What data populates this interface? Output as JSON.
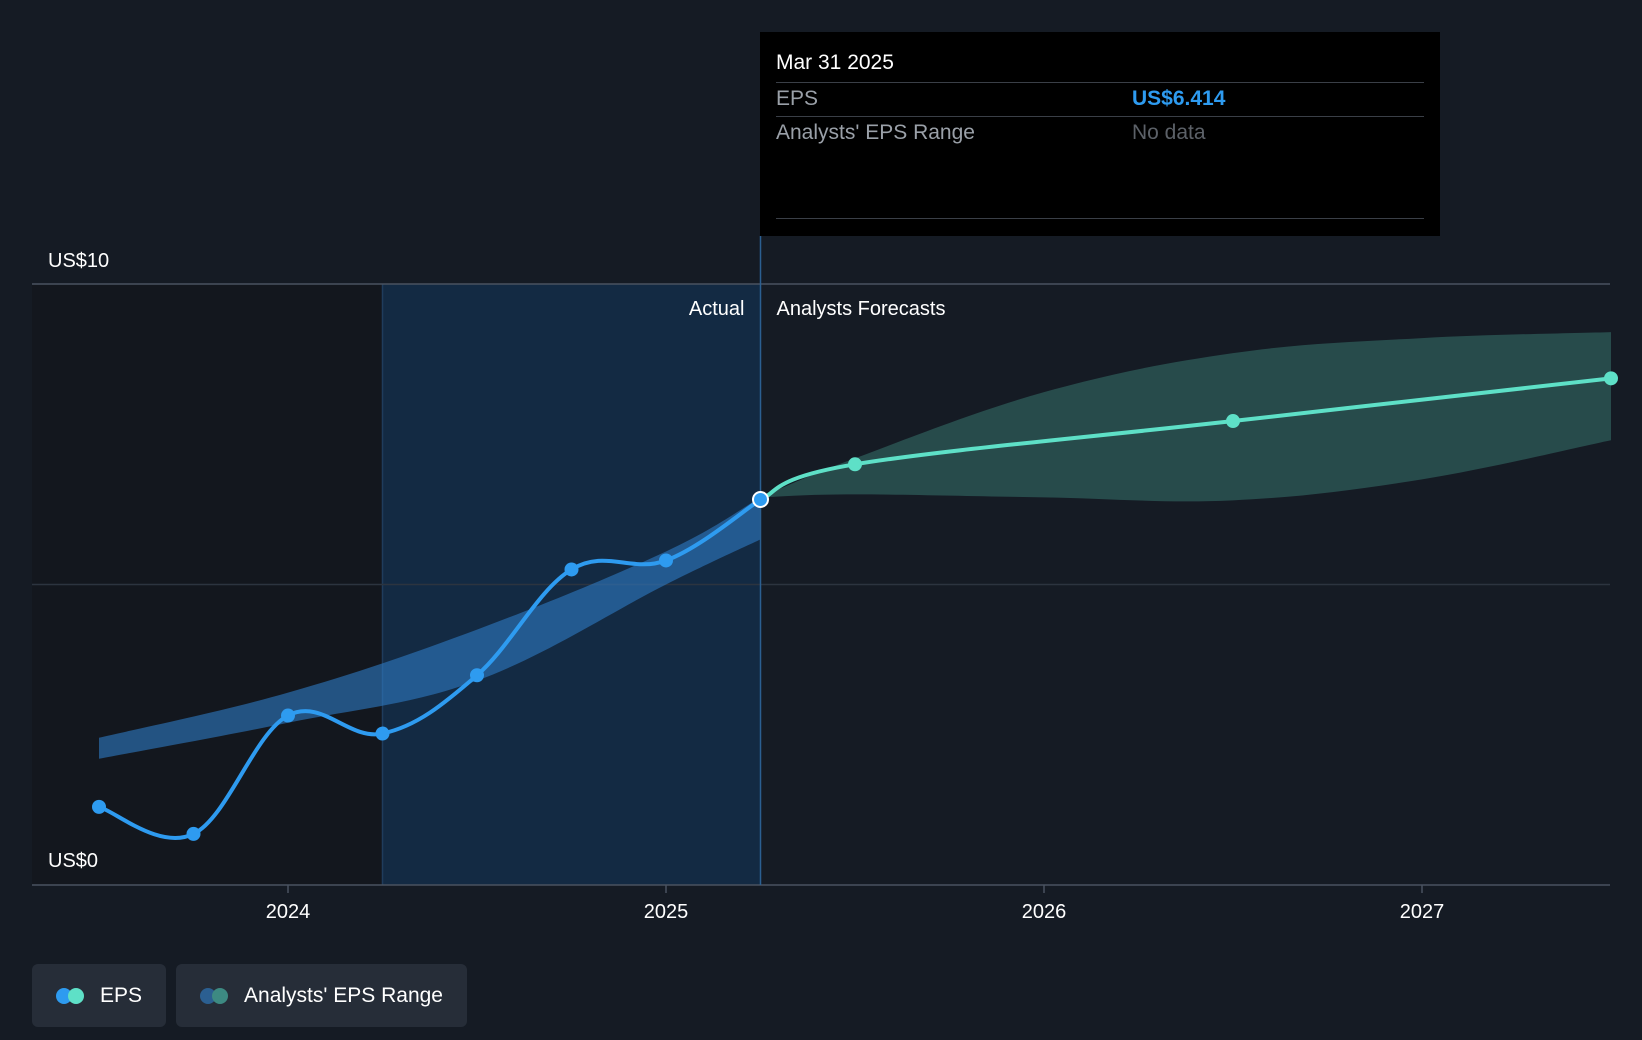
{
  "chart_data": {
    "type": "line",
    "y_axis": {
      "min": 0,
      "max": 10,
      "tick_labels": [
        "US$0",
        "US$10"
      ]
    },
    "x_axis": {
      "tick_labels": [
        "2024",
        "2025",
        "2026",
        "2027"
      ],
      "range": [
        2023.42,
        2027.5
      ]
    },
    "region_labels": {
      "actual": "Actual",
      "forecast": "Analysts Forecasts"
    },
    "divider_x": 2025.25,
    "highlight_start_x": 2024.25,
    "series": [
      {
        "name": "EPS",
        "kind": "actual",
        "color": "#2e9bf0",
        "points": [
          {
            "x": 2023.5,
            "y": 1.3
          },
          {
            "x": 2023.75,
            "y": 0.85
          },
          {
            "x": 2024.0,
            "y": 2.82
          },
          {
            "x": 2024.25,
            "y": 2.52
          },
          {
            "x": 2024.5,
            "y": 3.49
          },
          {
            "x": 2024.75,
            "y": 5.25
          },
          {
            "x": 2025.0,
            "y": 5.4
          },
          {
            "x": 2025.25,
            "y": 6.414
          }
        ]
      },
      {
        "name": "EPS",
        "kind": "forecast",
        "color": "#5ee0c7",
        "points": [
          {
            "x": 2025.25,
            "y": 6.414
          },
          {
            "x": 2025.5,
            "y": 7.0
          },
          {
            "x": 2026.5,
            "y": 7.72
          },
          {
            "x": 2027.5,
            "y": 8.43
          }
        ]
      }
    ],
    "ranges": [
      {
        "name": "Analysts' EPS Range",
        "kind": "actual",
        "color": "#2e7bc4",
        "x": [
          2023.5,
          2024.0,
          2024.5,
          2025.0,
          2025.25
        ],
        "low": [
          2.1,
          2.7,
          3.4,
          5.0,
          5.75
        ],
        "high": [
          2.45,
          3.2,
          4.25,
          5.55,
          6.45
        ]
      },
      {
        "name": "Analysts' EPS Range",
        "kind": "forecast",
        "color": "#2f5f5d",
        "x": [
          2025.25,
          2025.5,
          2026.0,
          2026.5,
          2027.0,
          2027.5
        ],
        "low": [
          6.45,
          6.5,
          6.45,
          6.4,
          6.75,
          7.4
        ],
        "high": [
          6.45,
          7.1,
          8.2,
          8.85,
          9.1,
          9.2
        ]
      }
    ]
  },
  "tooltip": {
    "date": "Mar 31 2025",
    "rows": [
      {
        "label": "EPS",
        "value": "US$6.414"
      },
      {
        "label": "Analysts' EPS Range",
        "value": "No data"
      }
    ]
  },
  "legend": [
    {
      "label": "EPS",
      "colors": [
        "#2e9bf0",
        "#5ee0c7"
      ]
    },
    {
      "label": "Analysts' EPS Range",
      "colors": [
        "#2b5f91",
        "#3d8a82"
      ]
    }
  ]
}
